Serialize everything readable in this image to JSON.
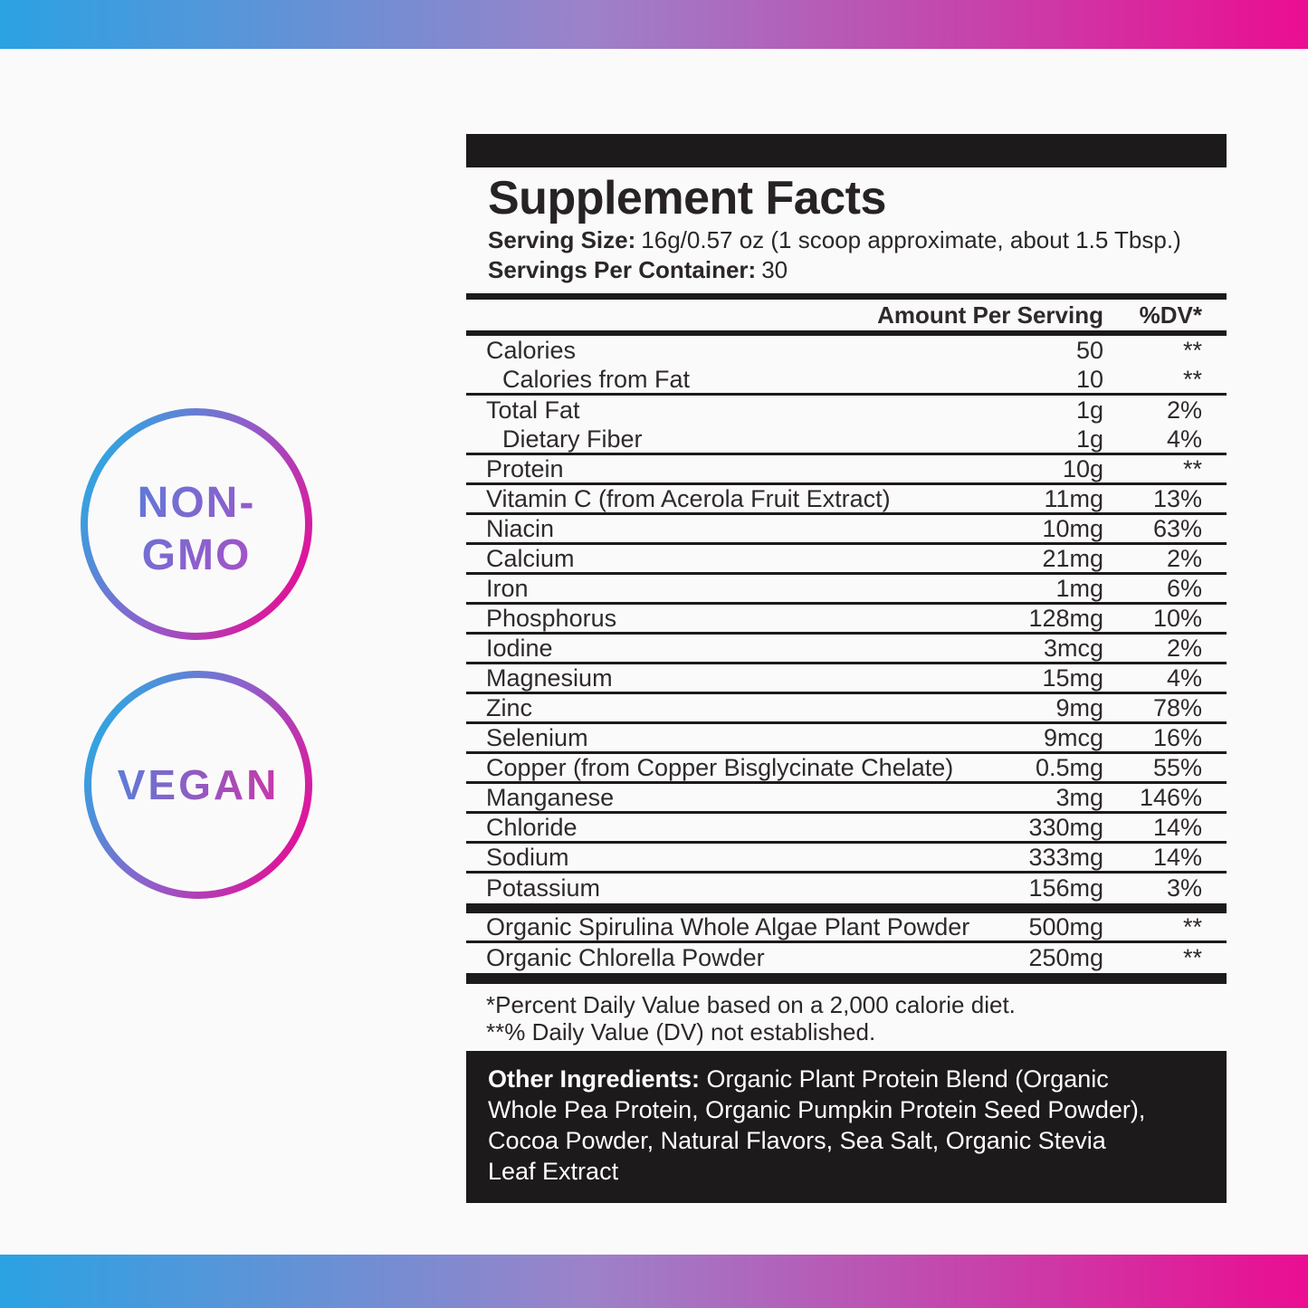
{
  "colors": {
    "bar_gradient": [
      "#2AA2E3",
      "#9C82C9",
      "#EB0D92"
    ],
    "ring_gradient": [
      "#2BA9E2",
      "#8F5FCB",
      "#E50E96"
    ],
    "nongmo_text_gradient": [
      "#5C7CD9",
      "#B04BC5"
    ],
    "vegan_text_gradient": [
      "#5C7CD9",
      "#C937A9"
    ],
    "panel_ink": "#1D1A1B",
    "page_background": "#FBFAFA"
  },
  "badges": [
    {
      "line1": "NON-",
      "line2": "GMO"
    },
    {
      "line1": "VEGAN"
    }
  ],
  "label": {
    "title": "Supplement Facts",
    "serving_size_label": "Serving Size:",
    "serving_size_value": "16g/0.57 oz (1 scoop approximate, about 1.5 Tbsp.)",
    "servings_label": "Servings Per Container:",
    "servings_value": "30",
    "columns": {
      "amount": "Amount Per Serving",
      "dv": "%DV*"
    },
    "rows": [
      {
        "name": "Calories",
        "amount": "50",
        "dv": "**",
        "indent": false,
        "sep": false
      },
      {
        "name": "Calories from Fat",
        "amount": "10",
        "dv": "**",
        "indent": true,
        "sep": true
      },
      {
        "name": "Total Fat",
        "amount": "1g",
        "dv": "2%",
        "indent": false,
        "sep": false
      },
      {
        "name": "Dietary Fiber",
        "amount": "1g",
        "dv": "4%",
        "indent": true,
        "sep": true
      },
      {
        "name": "Protein",
        "amount": "10g",
        "dv": "**",
        "indent": false,
        "sep": true
      },
      {
        "name": "Vitamin C (from Acerola Fruit Extract)",
        "amount": "11mg",
        "dv": "13%",
        "indent": false,
        "sep": true
      },
      {
        "name": "Niacin",
        "amount": "10mg",
        "dv": "63%",
        "indent": false,
        "sep": true
      },
      {
        "name": "Calcium",
        "amount": "21mg",
        "dv": "2%",
        "indent": false,
        "sep": true
      },
      {
        "name": "Iron",
        "amount": "1mg",
        "dv": "6%",
        "indent": false,
        "sep": true
      },
      {
        "name": "Phosphorus",
        "amount": "128mg",
        "dv": "10%",
        "indent": false,
        "sep": true
      },
      {
        "name": "Iodine",
        "amount": "3mcg",
        "dv": "2%",
        "indent": false,
        "sep": true
      },
      {
        "name": "Magnesium",
        "amount": "15mg",
        "dv": "4%",
        "indent": false,
        "sep": true
      },
      {
        "name": "Zinc",
        "amount": "9mg",
        "dv": "78%",
        "indent": false,
        "sep": true
      },
      {
        "name": "Selenium",
        "amount": "9mcg",
        "dv": "16%",
        "indent": false,
        "sep": true
      },
      {
        "name": "Copper (from Copper Bisglycinate Chelate)",
        "amount": "0.5mg",
        "dv": "55%",
        "indent": false,
        "sep": true
      },
      {
        "name": "Manganese",
        "amount": "3mg",
        "dv": "146%",
        "indent": false,
        "sep": true
      },
      {
        "name": "Chloride",
        "amount": "330mg",
        "dv": "14%",
        "indent": false,
        "sep": true
      },
      {
        "name": "Sodium",
        "amount": "333mg",
        "dv": "14%",
        "indent": false,
        "sep": true
      },
      {
        "name": "Potassium",
        "amount": "156mg",
        "dv": "3%",
        "indent": false,
        "sep": false
      }
    ],
    "supplement_rows": [
      {
        "name": "Organic Spirulina Whole Algae Plant Powder",
        "amount": "500mg",
        "dv": "**",
        "indent": false,
        "sep": true
      },
      {
        "name": "Organic Chlorella Powder",
        "amount": "250mg",
        "dv": "**",
        "indent": false,
        "sep": false
      }
    ],
    "footnotes": [
      "*Percent Daily Value based on a 2,000 calorie diet.",
      "**% Daily Value (DV) not established."
    ],
    "other_ingredients": {
      "label": "Other Ingredients:",
      "lines": [
        " Organic Plant Protein Blend (Organic",
        "Whole Pea Protein, Organic Pumpkin Protein Seed Powder),",
        "Cocoa Powder, Natural Flavors, Sea Salt, Organic Stevia",
        "Leaf Extract"
      ]
    }
  }
}
